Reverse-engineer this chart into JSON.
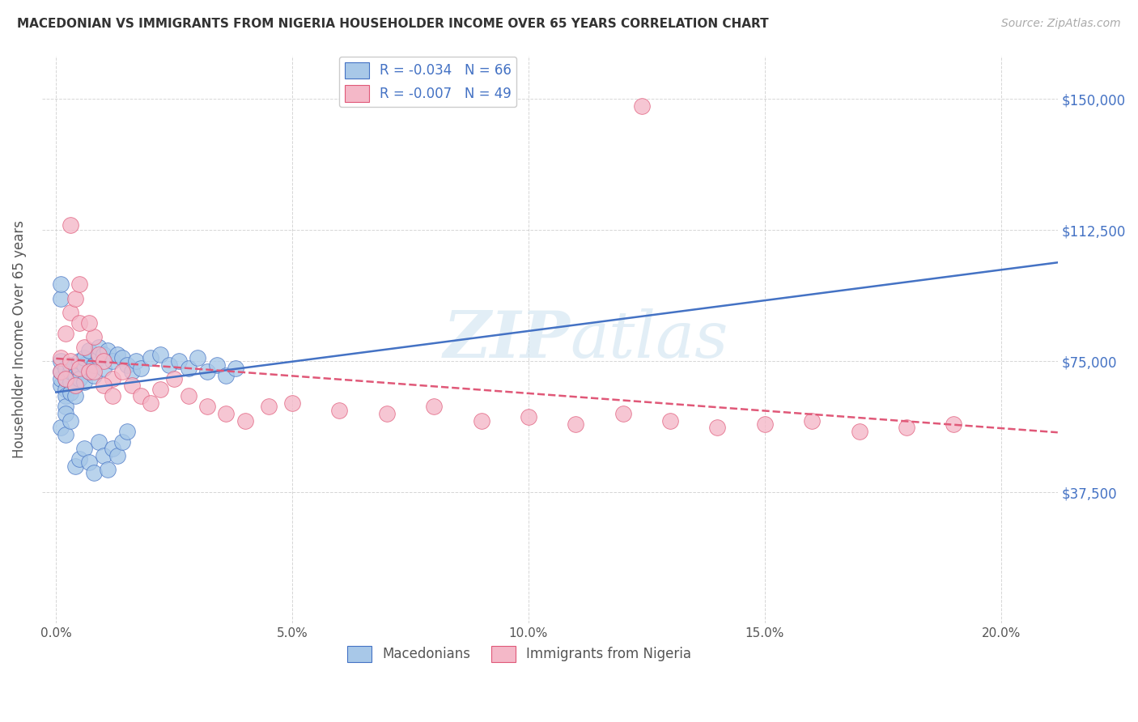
{
  "title": "MACEDONIAN VS IMMIGRANTS FROM NIGERIA HOUSEHOLDER INCOME OVER 65 YEARS CORRELATION CHART",
  "source": "Source: ZipAtlas.com",
  "ylabel": "Householder Income Over 65 years",
  "xlabel_ticks": [
    "0.0%",
    "5.0%",
    "10.0%",
    "15.0%",
    "20.0%"
  ],
  "xlabel_vals": [
    0.0,
    0.05,
    0.1,
    0.15,
    0.2
  ],
  "ytick_labels": [
    "$37,500",
    "$75,000",
    "$112,500",
    "$150,000"
  ],
  "ytick_vals": [
    37500,
    75000,
    112500,
    150000
  ],
  "ylim": [
    0,
    162500
  ],
  "xlim": [
    -0.003,
    0.212
  ],
  "macedonian_color": "#a8c8e8",
  "nigeria_color": "#f4b8c8",
  "trend_mac_color": "#4472c4",
  "trend_nig_color": "#e05878",
  "macedonian_x": [
    0.001,
    0.001,
    0.001,
    0.001,
    0.002,
    0.002,
    0.002,
    0.002,
    0.002,
    0.003,
    0.003,
    0.003,
    0.003,
    0.004,
    0.004,
    0.004,
    0.005,
    0.005,
    0.005,
    0.006,
    0.006,
    0.006,
    0.007,
    0.007,
    0.008,
    0.008,
    0.009,
    0.009,
    0.01,
    0.01,
    0.011,
    0.012,
    0.013,
    0.014,
    0.015,
    0.016,
    0.017,
    0.018,
    0.02,
    0.022,
    0.024,
    0.026,
    0.028,
    0.03,
    0.032,
    0.034,
    0.036,
    0.038,
    0.001,
    0.001,
    0.001,
    0.002,
    0.002,
    0.003,
    0.004,
    0.005,
    0.006,
    0.007,
    0.008,
    0.009,
    0.01,
    0.011,
    0.012,
    0.013,
    0.014,
    0.015
  ],
  "macedonian_y": [
    68000,
    70000,
    72000,
    75000,
    67000,
    70000,
    73000,
    65000,
    62000,
    69000,
    72000,
    74000,
    66000,
    71000,
    68000,
    65000,
    72000,
    70000,
    75000,
    74000,
    69000,
    76000,
    72000,
    78000,
    71000,
    74000,
    76000,
    79000,
    77000,
    73000,
    78000,
    75000,
    77000,
    76000,
    74000,
    72000,
    75000,
    73000,
    76000,
    77000,
    74000,
    75000,
    73000,
    76000,
    72000,
    74000,
    71000,
    73000,
    93000,
    97000,
    56000,
    60000,
    54000,
    58000,
    45000,
    47000,
    50000,
    46000,
    43000,
    52000,
    48000,
    44000,
    50000,
    48000,
    52000,
    55000
  ],
  "nigeria_x": [
    0.001,
    0.001,
    0.002,
    0.002,
    0.003,
    0.003,
    0.004,
    0.004,
    0.005,
    0.005,
    0.006,
    0.007,
    0.008,
    0.009,
    0.01,
    0.012,
    0.014,
    0.016,
    0.018,
    0.02,
    0.022,
    0.025,
    0.028,
    0.032,
    0.036,
    0.04,
    0.045,
    0.05,
    0.06,
    0.07,
    0.08,
    0.09,
    0.1,
    0.11,
    0.12,
    0.13,
    0.14,
    0.15,
    0.16,
    0.17,
    0.18,
    0.19,
    0.003,
    0.005,
    0.007,
    0.008,
    0.01,
    0.012,
    0.124
  ],
  "nigeria_y": [
    76000,
    72000,
    83000,
    70000,
    89000,
    75000,
    93000,
    68000,
    86000,
    73000,
    79000,
    72000,
    82000,
    77000,
    75000,
    70000,
    72000,
    68000,
    65000,
    63000,
    67000,
    70000,
    65000,
    62000,
    60000,
    58000,
    62000,
    63000,
    61000,
    60000,
    62000,
    58000,
    59000,
    57000,
    60000,
    58000,
    56000,
    57000,
    58000,
    55000,
    56000,
    57000,
    114000,
    97000,
    86000,
    72000,
    68000,
    65000,
    148000
  ]
}
